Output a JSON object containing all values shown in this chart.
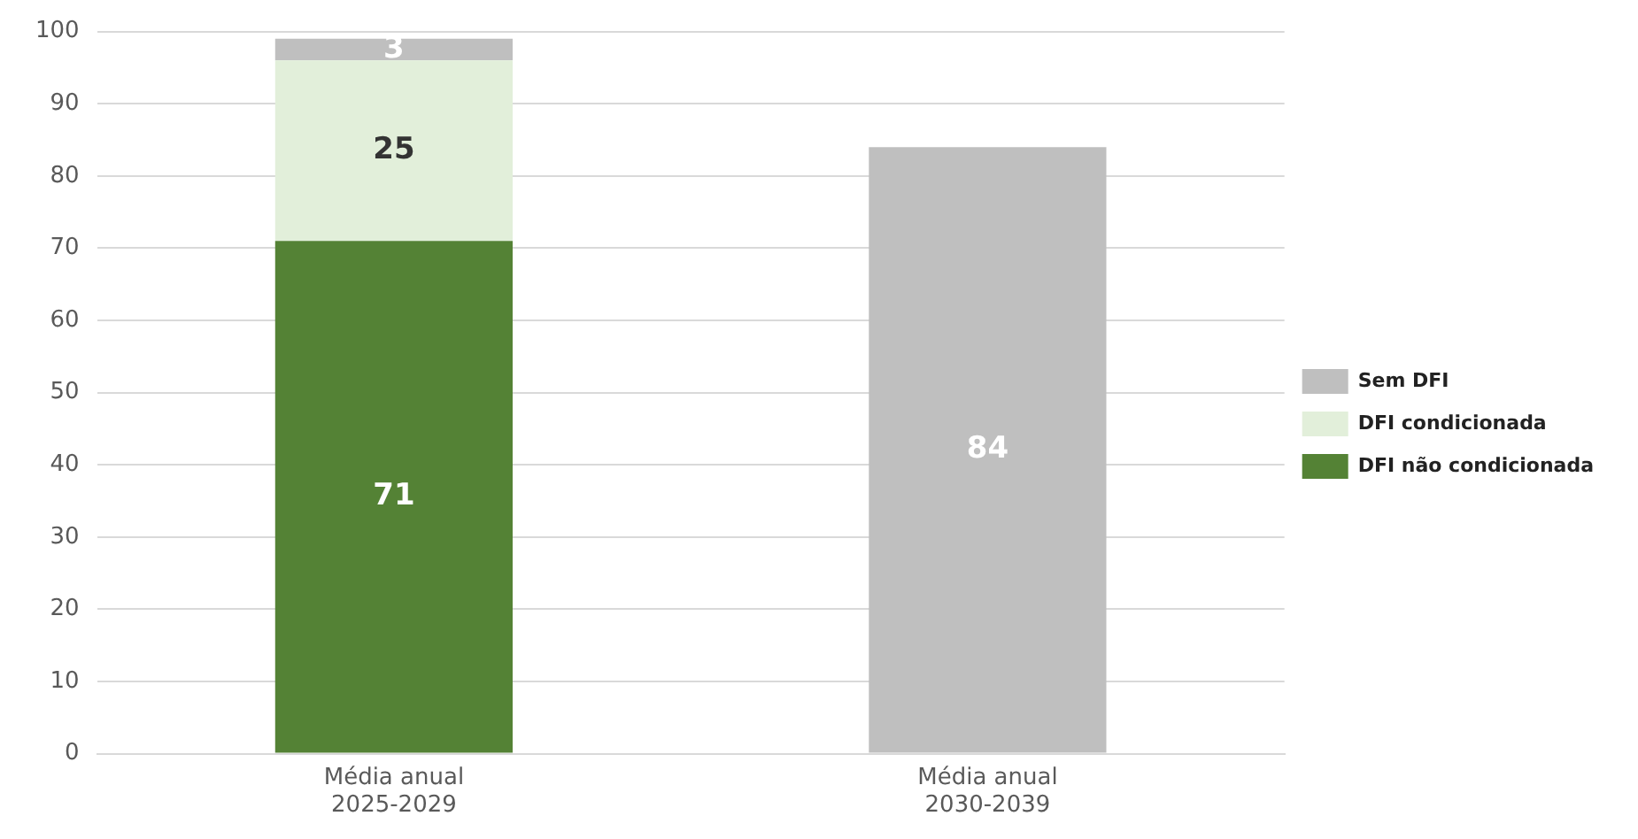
{
  "chart_data": {
    "type": "bar",
    "stacked": true,
    "categories": [
      "Média anual 2025-2029",
      "Média anual 2030-2039"
    ],
    "series": [
      {
        "name": "DFI não condicionada",
        "color": "#548235",
        "values": [
          71,
          null
        ]
      },
      {
        "name": "DFI condicionada",
        "color": "#e2efda",
        "values": [
          25,
          null
        ]
      },
      {
        "name": "Sem DFI",
        "color": "#bfbfbf",
        "values": [
          3,
          84
        ]
      }
    ],
    "ylim": [
      0,
      100
    ],
    "yticks": [
      0,
      10,
      20,
      30,
      40,
      50,
      60,
      70,
      80,
      90,
      100
    ],
    "grid": "y",
    "legend": "right",
    "data_labels": true
  }
}
